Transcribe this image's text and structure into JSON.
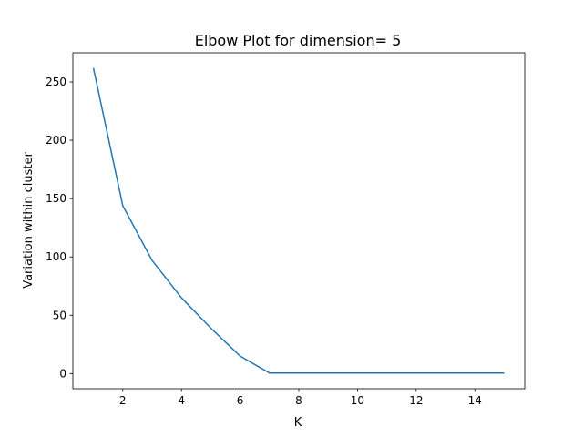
{
  "chart_data": {
    "type": "line",
    "title": "Elbow Plot for dimension= 5",
    "xlabel": "K",
    "ylabel": "Variation within cluster",
    "xlim": [
      0.3,
      15.7
    ],
    "ylim": [
      -13,
      275
    ],
    "xticks": [
      2,
      4,
      6,
      8,
      10,
      12,
      14
    ],
    "yticks": [
      0,
      50,
      100,
      150,
      200,
      250
    ],
    "grid": false,
    "series": [
      {
        "color": "#1f77b4",
        "x": [
          1,
          2,
          3,
          4,
          5,
          6,
          7,
          8,
          9,
          10,
          11,
          12,
          13,
          14,
          15
        ],
        "y": [
          262,
          144,
          97,
          65,
          39,
          15,
          0.5,
          0.5,
          0.5,
          0.5,
          0.5,
          0.5,
          0.5,
          0.5,
          0.5
        ]
      }
    ]
  }
}
